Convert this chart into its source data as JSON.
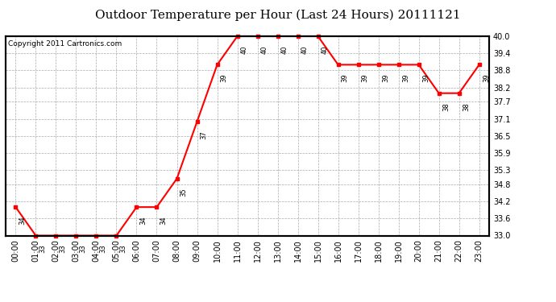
{
  "title": "Outdoor Temperature per Hour (Last 24 Hours) 20111121",
  "copyright": "Copyright 2011 Cartronics.com",
  "hours": [
    "00:00",
    "01:00",
    "02:00",
    "03:00",
    "04:00",
    "05:00",
    "06:00",
    "07:00",
    "08:00",
    "09:00",
    "10:00",
    "11:00",
    "12:00",
    "13:00",
    "14:00",
    "15:00",
    "16:00",
    "17:00",
    "18:00",
    "19:00",
    "20:00",
    "21:00",
    "22:00",
    "23:00"
  ],
  "temps": [
    34.0,
    33.0,
    33.0,
    33.0,
    33.0,
    33.0,
    34.0,
    34.0,
    35.0,
    37.0,
    39.0,
    40.0,
    40.0,
    40.0,
    40.0,
    40.0,
    39.0,
    39.0,
    39.0,
    39.0,
    39.0,
    38.0,
    38.0,
    39.0
  ],
  "annot_labels": [
    "34",
    "33",
    "33",
    "33",
    "33",
    "33",
    "34",
    "34",
    "35",
    "37",
    "39",
    "40",
    "40",
    "40",
    "40",
    "40",
    "39",
    "39",
    "39",
    "39",
    "39",
    "38",
    "38",
    "39"
  ],
  "ylim_min": 33.0,
  "ylim_max": 40.0,
  "yticks": [
    33.0,
    33.6,
    34.2,
    34.8,
    35.3,
    35.9,
    36.5,
    37.1,
    37.7,
    38.2,
    38.8,
    39.4,
    40.0
  ],
  "line_color": "red",
  "marker": "s",
  "marker_color": "red",
  "marker_size": 3,
  "grid_color": "#aaaaaa",
  "bg_color": "white",
  "title_fontsize": 11,
  "label_fontsize": 7,
  "annot_fontsize": 6,
  "copyright_fontsize": 6.5
}
